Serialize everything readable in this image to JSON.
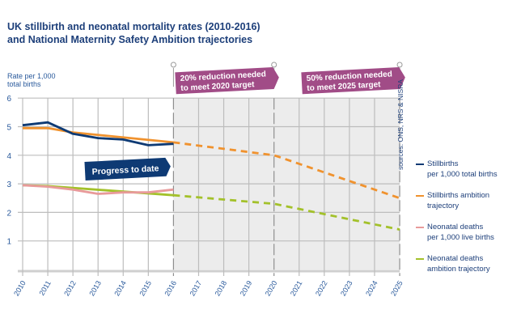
{
  "title_line1": "UK stillbirth and neonatal mortality rates (2010-2016)",
  "title_line2": "and National Maternity Safety Ambition trajectories",
  "source": "sources: ONS, NRS & NISRA",
  "annotations": {
    "progress": "Progress to date",
    "target2020_line1": "20% reduction needed",
    "target2020_line2": "to meet 2020 target",
    "target2025_line1": "50% reduction needed",
    "target2025_line2": "to meet 2025 target"
  },
  "colors": {
    "stillbirths": "#0e3a74",
    "stillbirths_ambition": "#f0922e",
    "neonatal": "#e89a9a",
    "neonatal_ambition": "#a3c12a",
    "banner_purple": "#a14c87",
    "banner_navy": "#0e3a74",
    "shade": "#ececec"
  },
  "chart_data": {
    "type": "line",
    "title": "UK stillbirth and neonatal mortality rates (2010-2016) and National Maternity Safety Ambition trajectories",
    "ylabel_line1": "Rate per 1,000",
    "ylabel_line2": "total births",
    "xlabel": "",
    "ylim": [
      0,
      6
    ],
    "yticks": [
      "1",
      "2",
      "3",
      "4",
      "5",
      "6"
    ],
    "ytick_values": [
      1,
      2,
      3,
      4,
      5,
      6
    ],
    "x": [
      2010,
      2011,
      2012,
      2013,
      2014,
      2015,
      2016,
      2017,
      2018,
      2019,
      2020,
      2021,
      2022,
      2023,
      2024,
      2025
    ],
    "xtick_labels": [
      "2010",
      "2011",
      "2012",
      "2013",
      "2014",
      "2015",
      "2016",
      "2017",
      "2018",
      "2019",
      "2020",
      "2021",
      "2022",
      "2023",
      "2024",
      "2025"
    ],
    "grid": true,
    "shaded_region": [
      2016,
      2025
    ],
    "legend_position": "right",
    "series": [
      {
        "key": "stillbirths",
        "name_line1": "Stillbirths",
        "name_line2": "per 1,000 total births",
        "style": "solid",
        "x": [
          2010,
          2011,
          2012,
          2013,
          2014,
          2015,
          2016
        ],
        "values": [
          5.05,
          5.15,
          4.75,
          4.6,
          4.55,
          4.35,
          4.4
        ]
      },
      {
        "key": "stillbirths_ambition",
        "name_line1": "Stillbirths ambition",
        "name_line2": "trajectory",
        "style": "solid-then-dashed",
        "x": [
          2010,
          2011,
          2012,
          2016,
          2020,
          2025
        ],
        "values": [
          4.95,
          4.95,
          4.8,
          4.45,
          4.0,
          2.5
        ],
        "dash_from": 2016
      },
      {
        "key": "neonatal",
        "name_line1": "Neonatal deaths",
        "name_line2": "per 1,000 live births",
        "style": "solid",
        "x": [
          2010,
          2011,
          2012,
          2013,
          2014,
          2015,
          2016
        ],
        "values": [
          2.95,
          2.9,
          2.8,
          2.65,
          2.7,
          2.7,
          2.8
        ]
      },
      {
        "key": "neonatal_ambition",
        "name_line1": "Neonatal deaths",
        "name_line2": "ambition trajectory",
        "style": "solid-then-dashed",
        "x": [
          2010,
          2011,
          2016,
          2020,
          2025
        ],
        "values": [
          2.95,
          2.92,
          2.6,
          2.3,
          1.4
        ],
        "dash_from": 2016
      }
    ]
  }
}
